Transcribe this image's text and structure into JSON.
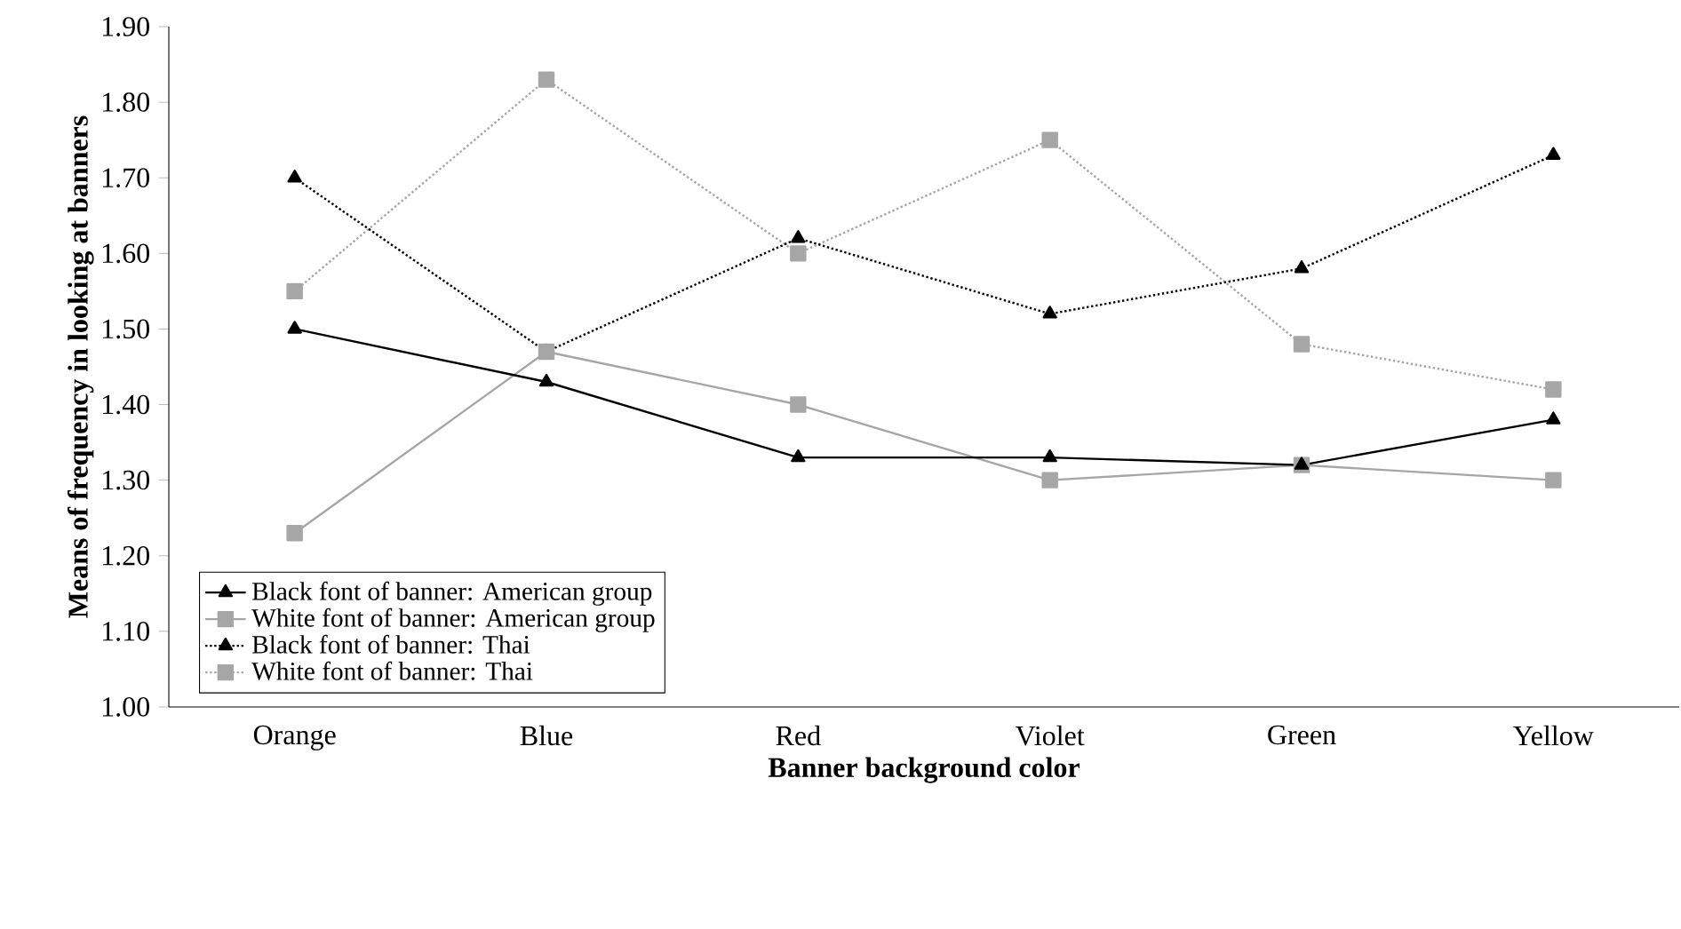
{
  "chart_data": {
    "type": "line",
    "xlabel": "Banner background color",
    "ylabel": "Means of frequency in looking at banners",
    "categories": [
      "Orange",
      "Blue",
      "Red",
      "Violet",
      "Green",
      "Yellow"
    ],
    "series": [
      {
        "name": "Black font of banner: American group",
        "color": "#000000",
        "marker": "triangle",
        "line_style": "solid",
        "values": [
          1.5,
          1.43,
          1.33,
          1.33,
          1.32,
          1.38
        ]
      },
      {
        "name": "White font of banner: American group",
        "color": "#a6a6a6",
        "marker": "square",
        "line_style": "solid",
        "values": [
          1.23,
          1.47,
          1.4,
          1.3,
          1.32,
          1.3
        ]
      },
      {
        "name": "Black font of banner: Thai",
        "color": "#000000",
        "marker": "triangle",
        "line_style": "dotted",
        "values": [
          1.7,
          1.47,
          1.62,
          1.52,
          1.58,
          1.73
        ]
      },
      {
        "name": "White font of banner: Thai",
        "color": "#a6a6a6",
        "marker": "square",
        "line_style": "dotted",
        "values": [
          1.55,
          1.83,
          1.6,
          1.75,
          1.48,
          1.42
        ]
      }
    ],
    "ylim": [
      1.0,
      1.9
    ],
    "yticks": [
      {
        "value": 1.0,
        "label": "1.00"
      },
      {
        "value": 1.1,
        "label": "1.10"
      },
      {
        "value": 1.2,
        "label": "1.20"
      },
      {
        "value": 1.3,
        "label": "1.30"
      },
      {
        "value": 1.4,
        "label": "1.40"
      },
      {
        "value": 1.5,
        "label": "1.50"
      },
      {
        "value": 1.6,
        "label": "1.60"
      },
      {
        "value": 1.7,
        "label": "1.70"
      },
      {
        "value": 1.8,
        "label": "1.80"
      },
      {
        "value": 1.9,
        "label": "1.90"
      }
    ],
    "grid": false,
    "legend": "bottom left"
  }
}
